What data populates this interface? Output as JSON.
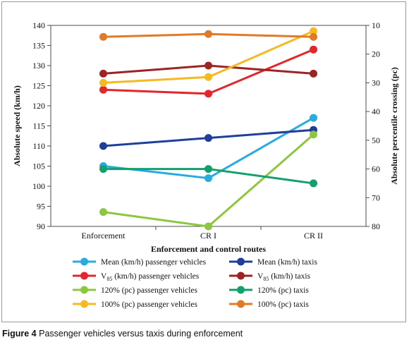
{
  "caption": {
    "label": "Figure 4",
    "text": "Passenger vehicles versus taxis during enforcement"
  },
  "chart_data": {
    "type": "line",
    "xlabel": "Enforcement and control routes",
    "ylabel_left": "Absolute speed (km/h)",
    "ylabel_right": "Absolute percentile crossing (pc)",
    "categories": [
      "Enforcement",
      "CR I",
      "CR II"
    ],
    "ylim_left": [
      90,
      140
    ],
    "yticks_left": [
      90,
      95,
      100,
      105,
      110,
      115,
      120,
      125,
      130,
      135,
      140
    ],
    "ylim_right": [
      80,
      10
    ],
    "yticks_right": [
      10,
      20,
      30,
      40,
      50,
      60,
      70,
      80
    ],
    "grid": false,
    "legend_position": "bottom",
    "series": [
      {
        "name": "Mean (km/h) passenger vehicles",
        "name_prefix": "Mean (km/h) passenger vehicles",
        "name_sub": "",
        "name_suffix": "",
        "color": "#29abe2",
        "axis": "left",
        "values": [
          105,
          102,
          117
        ]
      },
      {
        "name": "Mean (km/h) taxis",
        "name_prefix": "Mean (km/h) taxis",
        "name_sub": "",
        "name_suffix": "",
        "color": "#1f3f99",
        "axis": "left",
        "values": [
          110,
          112,
          114
        ]
      },
      {
        "name": "V85 (km/h) passenger vehicles",
        "name_prefix": "V",
        "name_sub": "85",
        "name_suffix": " (km/h) passenger vehicles",
        "color": "#e3262b",
        "axis": "left",
        "values": [
          124,
          123,
          134
        ]
      },
      {
        "name": "V85 (km/h) taxis",
        "name_prefix": "V",
        "name_sub": "85",
        "name_suffix": " (km/h) taxis",
        "color": "#9c2423",
        "axis": "left",
        "values": [
          128,
          130,
          128
        ]
      },
      {
        "name": "120% (pc) passenger vehicles",
        "name_prefix": "120% (pc) passenger vehicles",
        "name_sub": "",
        "name_suffix": "",
        "color": "#8dc63f",
        "axis": "right",
        "values": [
          75,
          80,
          48
        ]
      },
      {
        "name": "120% (pc) taxis",
        "name_prefix": "120% (pc) taxis",
        "name_sub": "",
        "name_suffix": "",
        "color": "#13a06e",
        "axis": "right",
        "values": [
          60,
          60,
          65
        ]
      },
      {
        "name": "100% (pc) passenger vehicles",
        "name_prefix": "100% (pc) passenger vehicles",
        "name_sub": "",
        "name_suffix": "",
        "color": "#f5b921",
        "axis": "right",
        "values": [
          30,
          28,
          12
        ]
      },
      {
        "name": "100% (pc) taxis",
        "name_prefix": "100% (pc) taxis",
        "name_sub": "",
        "name_suffix": "",
        "color": "#e07a26",
        "axis": "right",
        "values": [
          14,
          13,
          14
        ]
      }
    ]
  }
}
